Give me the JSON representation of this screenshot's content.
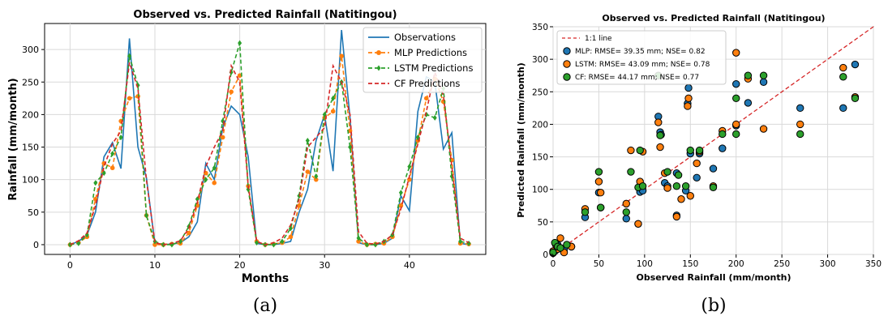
{
  "colors": {
    "observations": "#1f77b4",
    "mlp": "#ff7f0e",
    "lstm": "#2ca02c",
    "cf": "#d62728",
    "one_to_one": "#d62728",
    "grid": "#d9d9d9"
  },
  "captions": [
    "(a)",
    "(b)"
  ],
  "chart_data": [
    {
      "type": "line",
      "title": "Observed vs. Predicted Rainfall (Natitingou)",
      "xlabel": "Months",
      "ylabel": "Rainfall (mm/month)",
      "xlim": [
        -3,
        49
      ],
      "ylim": [
        -15,
        340
      ],
      "xticks": [
        0,
        10,
        20,
        30,
        40
      ],
      "yticks": [
        0,
        50,
        100,
        150,
        200,
        250,
        300
      ],
      "grid": true,
      "legend": "top-right",
      "x": [
        0,
        1,
        2,
        3,
        4,
        5,
        6,
        7,
        8,
        9,
        10,
        11,
        12,
        13,
        14,
        15,
        16,
        17,
        18,
        19,
        20,
        21,
        22,
        23,
        24,
        25,
        26,
        27,
        28,
        29,
        30,
        31,
        32,
        33,
        34,
        35,
        36,
        37,
        38,
        39,
        40,
        41,
        42,
        43,
        44,
        45,
        46,
        47
      ],
      "series": [
        {
          "name": "Observations",
          "style": "solid",
          "values": [
            0,
            5,
            15,
            50,
            135,
            157,
            117,
            317,
            150,
            103,
            2,
            0,
            1,
            3,
            12,
            35,
            125,
            100,
            180,
            213,
            200,
            135,
            2,
            0,
            0,
            2,
            5,
            50,
            85,
            160,
            200,
            113,
            330,
            195,
            3,
            0,
            0,
            2,
            10,
            75,
            52,
            205,
            258,
            250,
            147,
            172,
            2,
            0
          ]
        },
        {
          "name": "MLP Predictions",
          "style": "dashed",
          "marker": "circle",
          "values": [
            0,
            3,
            12,
            70,
            125,
            118,
            190,
            225,
            228,
            45,
            0,
            0,
            1,
            2,
            18,
            60,
            110,
            95,
            165,
            235,
            260,
            90,
            5,
            0,
            1,
            3,
            12,
            60,
            112,
            100,
            195,
            205,
            290,
            175,
            5,
            0,
            1,
            2,
            12,
            60,
            100,
            160,
            225,
            255,
            220,
            130,
            2,
            1
          ]
        },
        {
          "name": "LSTM Predictions",
          "style": "dashed",
          "marker": "diamond",
          "values": [
            0,
            2,
            15,
            95,
            110,
            140,
            165,
            290,
            245,
            45,
            5,
            0,
            0,
            5,
            28,
            70,
            100,
            118,
            190,
            265,
            310,
            85,
            3,
            0,
            0,
            5,
            25,
            75,
            160,
            105,
            200,
            225,
            250,
            150,
            10,
            0,
            0,
            5,
            15,
            80,
            120,
            165,
            200,
            195,
            240,
            105,
            5,
            2
          ]
        },
        {
          "name": "CF Predictions",
          "style": "dashed",
          "values": [
            0,
            6,
            18,
            60,
            120,
            155,
            175,
            280,
            240,
            100,
            3,
            0,
            2,
            6,
            25,
            65,
            120,
            150,
            175,
            275,
            250,
            90,
            5,
            0,
            3,
            10,
            30,
            70,
            150,
            165,
            180,
            275,
            250,
            200,
            20,
            2,
            1,
            5,
            15,
            55,
            105,
            155,
            205,
            265,
            230,
            120,
            10,
            3
          ]
        }
      ]
    },
    {
      "type": "scatter",
      "title": "Observed vs. Predicted Rainfall (Natitingou)",
      "xlabel": "Observed Rainfall (mm/month)",
      "ylabel": "Predicted Rainfall (mm/month)",
      "xlim": [
        0,
        350
      ],
      "ylim": [
        0,
        350
      ],
      "xticks": [
        0,
        50,
        100,
        150,
        200,
        250,
        300,
        350
      ],
      "yticks": [
        0,
        50,
        100,
        150,
        200,
        250,
        300,
        350
      ],
      "grid": true,
      "legend": "top-left",
      "reference_line": {
        "name": "1:1 line",
        "x": [
          0,
          350
        ],
        "y": [
          0,
          350
        ]
      },
      "series": [
        {
          "name": "MLP: RMSE= 39.35 mm; NSE= 0.82",
          "x": [
            0,
            2,
            5,
            8,
            12,
            20,
            35,
            50,
            52,
            80,
            93,
            95,
            98,
            115,
            117,
            118,
            122,
            125,
            135,
            135,
            145,
            147,
            148,
            150,
            157,
            160,
            175,
            185,
            200,
            200,
            213,
            230,
            270,
            317,
            330
          ],
          "y": [
            2,
            5,
            15,
            10,
            8,
            12,
            57,
            95,
            72,
            55,
            47,
            96,
            98,
            212,
            188,
            184,
            110,
            105,
            60,
            125,
            98,
            232,
            256,
            155,
            118,
            155,
            132,
            163,
            262,
            198,
            233,
            265,
            225,
            225,
            292
          ]
        },
        {
          "name": "LSTM: RMSE= 43.09 mm; NSE= 0.78",
          "x": [
            0,
            3,
            5,
            8,
            12,
            20,
            35,
            50,
            52,
            80,
            85,
            93,
            95,
            98,
            115,
            117,
            122,
            125,
            135,
            140,
            147,
            148,
            150,
            157,
            160,
            175,
            185,
            200,
            200,
            213,
            230,
            270,
            317,
            330
          ],
          "y": [
            5,
            15,
            8,
            25,
            3,
            12,
            70,
            112,
            95,
            78,
            160,
            47,
            112,
            158,
            203,
            165,
            125,
            102,
            58,
            85,
            228,
            240,
            90,
            140,
            158,
            105,
            190,
            200,
            310,
            270,
            193,
            200,
            287,
            242
          ]
        },
        {
          "name": "CF: RMSE= 44.17 mm; NSE= 0.77",
          "x": [
            0,
            2,
            5,
            8,
            15,
            35,
            50,
            52,
            80,
            85,
            93,
            95,
            98,
            115,
            117,
            125,
            135,
            137,
            145,
            150,
            160,
            175,
            185,
            200,
            200,
            213,
            230,
            270,
            317,
            330
          ],
          "y": [
            3,
            18,
            12,
            10,
            15,
            65,
            127,
            72,
            65,
            127,
            103,
            160,
            105,
            275,
            183,
            127,
            105,
            122,
            105,
            160,
            160,
            103,
            185,
            240,
            185,
            275,
            275,
            185,
            273,
            240
          ]
        }
      ]
    }
  ]
}
